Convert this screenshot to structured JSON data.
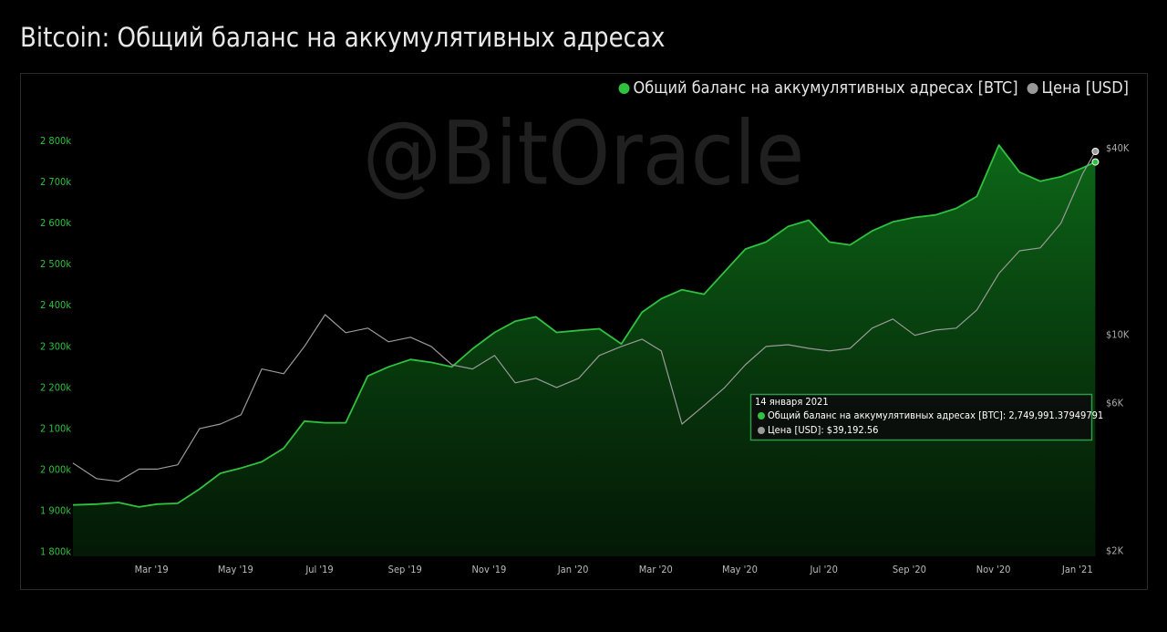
{
  "chart_data": {
    "type": "area-line",
    "title": "Bitcoin: Общий баланс на аккумулятивных адресах",
    "watermark": "@BitOracle",
    "x": [
      "2019-01-03",
      "2019-01-20",
      "2019-02-05",
      "2019-02-20",
      "2019-03-05",
      "2019-03-20",
      "2019-04-05",
      "2019-04-20",
      "2019-05-05",
      "2019-05-20",
      "2019-06-05",
      "2019-06-20",
      "2019-07-05",
      "2019-07-20",
      "2019-08-05",
      "2019-08-20",
      "2019-09-05",
      "2019-09-20",
      "2019-10-05",
      "2019-10-20",
      "2019-11-05",
      "2019-11-20",
      "2019-12-05",
      "2019-12-20",
      "2020-01-05",
      "2020-01-20",
      "2020-02-05",
      "2020-02-20",
      "2020-03-05",
      "2020-03-20",
      "2020-04-05",
      "2020-04-20",
      "2020-05-05",
      "2020-05-20",
      "2020-06-05",
      "2020-06-20",
      "2020-07-05",
      "2020-07-20",
      "2020-08-05",
      "2020-08-20",
      "2020-09-05",
      "2020-09-20",
      "2020-10-05",
      "2020-10-20",
      "2020-11-05",
      "2020-11-20",
      "2020-12-05",
      "2020-12-20",
      "2021-01-05",
      "2021-01-14"
    ],
    "series": [
      {
        "name": "Общий баланс на аккумулятивных адресах [BTC]",
        "color": "#2fc13f",
        "axis": "y",
        "values": [
          1915000,
          1917000,
          1921000,
          1910000,
          1917000,
          1919000,
          1954000,
          1992000,
          2005000,
          2020000,
          2053000,
          2119000,
          2115000,
          2115000,
          2229000,
          2251000,
          2269000,
          2262000,
          2251000,
          2295000,
          2335000,
          2362000,
          2373000,
          2335000,
          2340000,
          2344000,
          2307000,
          2384000,
          2417000,
          2439000,
          2428000,
          2483000,
          2538000,
          2555000,
          2593000,
          2608000,
          2555000,
          2548000,
          2582000,
          2604000,
          2615000,
          2621000,
          2637000,
          2666000,
          2791000,
          2725000,
          2703000,
          2714000,
          2736000,
          2749991.37949791
        ]
      },
      {
        "name": "Цена [USD]",
        "color": "#9a9a9a",
        "axis": "y2",
        "values": [
          3860,
          3440,
          3370,
          3690,
          3690,
          3810,
          4990,
          5160,
          5530,
          7770,
          7500,
          9190,
          11640,
          10180,
          10530,
          9510,
          9840,
          9190,
          8020,
          7770,
          8590,
          7010,
          7250,
          6770,
          7250,
          8590,
          9190,
          9700,
          8890,
          5160,
          5920,
          6770,
          8020,
          9190,
          9310,
          9060,
          8890,
          9060,
          10530,
          11270,
          9980,
          10380,
          10530,
          12050,
          15810,
          18720,
          19120,
          22960,
          33350,
          39192.56
        ]
      }
    ],
    "xlim": [
      "2019-01-03",
      "2021-01-21"
    ],
    "xticks": [
      {
        "value": "2019-03-01",
        "label": "Mar '19"
      },
      {
        "value": "2019-05-01",
        "label": "May '19"
      },
      {
        "value": "2019-07-01",
        "label": "Jul '19"
      },
      {
        "value": "2019-09-01",
        "label": "Sep '19"
      },
      {
        "value": "2019-11-01",
        "label": "Nov '19"
      },
      {
        "value": "2020-01-01",
        "label": "Jan '20"
      },
      {
        "value": "2020-03-01",
        "label": "Mar '20"
      },
      {
        "value": "2020-05-01",
        "label": "May '20"
      },
      {
        "value": "2020-07-01",
        "label": "Jul '20"
      },
      {
        "value": "2020-09-01",
        "label": "Sep '20"
      },
      {
        "value": "2020-11-01",
        "label": "Nov '20"
      },
      {
        "value": "2021-01-01",
        "label": "Jan '21"
      }
    ],
    "ylim": [
      1790000,
      2900000
    ],
    "yticks": [
      {
        "value": 1800000,
        "label": "1 800k"
      },
      {
        "value": 1900000,
        "label": "1 900k"
      },
      {
        "value": 2000000,
        "label": "2 000k"
      },
      {
        "value": 2100000,
        "label": "2 100k"
      },
      {
        "value": 2200000,
        "label": "2 200k"
      },
      {
        "value": 2300000,
        "label": "2 300k"
      },
      {
        "value": 2400000,
        "label": "2 400k"
      },
      {
        "value": 2500000,
        "label": "2 500k"
      },
      {
        "value": 2600000,
        "label": "2 600k"
      },
      {
        "value": 2700000,
        "label": "2 700k"
      },
      {
        "value": 2800000,
        "label": "2 800k"
      }
    ],
    "y2lim": [
      1930,
      57300
    ],
    "y2log": true,
    "y2ticks": [
      {
        "value": 2000,
        "label": "$2K"
      },
      {
        "value": 6000,
        "label": "$6K"
      },
      {
        "value": 10000,
        "label": "$10K"
      },
      {
        "value": 40000,
        "label": "$40K"
      }
    ],
    "grid": false,
    "legend": "top-right",
    "tooltip": {
      "date": "14 января 2021",
      "lines": [
        "Общий баланс на аккумулятивных адресах [BTC]: 2,749,991.37949791",
        "Цена [USD]: $39,192.56"
      ]
    }
  }
}
